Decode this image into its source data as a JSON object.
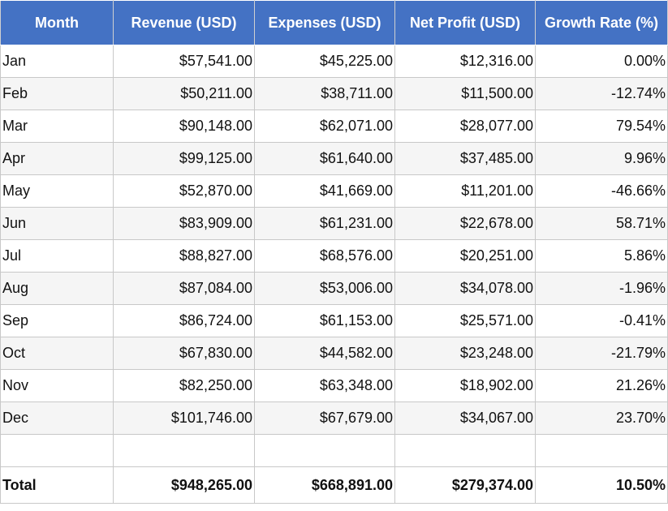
{
  "table": {
    "header": [
      "Month",
      "Revenue (USD)",
      "Expenses (USD)",
      "Net Profit (USD)",
      "Growth Rate (%)"
    ],
    "rows": [
      [
        "Jan",
        "$57,541.00",
        "$45,225.00",
        "$12,316.00",
        "0.00%"
      ],
      [
        "Feb",
        "$50,211.00",
        "$38,711.00",
        "$11,500.00",
        "-12.74%"
      ],
      [
        "Mar",
        "$90,148.00",
        "$62,071.00",
        "$28,077.00",
        "79.54%"
      ],
      [
        "Apr",
        "$99,125.00",
        "$61,640.00",
        "$37,485.00",
        "9.96%"
      ],
      [
        "May",
        "$52,870.00",
        "$41,669.00",
        "$11,201.00",
        "-46.66%"
      ],
      [
        "Jun",
        "$83,909.00",
        "$61,231.00",
        "$22,678.00",
        "58.71%"
      ],
      [
        "Jul",
        "$88,827.00",
        "$68,576.00",
        "$20,251.00",
        "5.86%"
      ],
      [
        "Aug",
        "$87,084.00",
        "$53,006.00",
        "$34,078.00",
        "-1.96%"
      ],
      [
        "Sep",
        "$86,724.00",
        "$61,153.00",
        "$25,571.00",
        "-0.41%"
      ],
      [
        "Oct",
        "$67,830.00",
        "$44,582.00",
        "$23,248.00",
        "-21.79%"
      ],
      [
        "Nov",
        "$82,250.00",
        "$63,348.00",
        "$18,902.00",
        "21.26%"
      ],
      [
        "Dec",
        "$101,746.00",
        "$67,679.00",
        "$34,067.00",
        "23.70%"
      ]
    ],
    "total": [
      "Total",
      "$948,265.00",
      "$668,891.00",
      "$279,374.00",
      "10.50%"
    ]
  }
}
